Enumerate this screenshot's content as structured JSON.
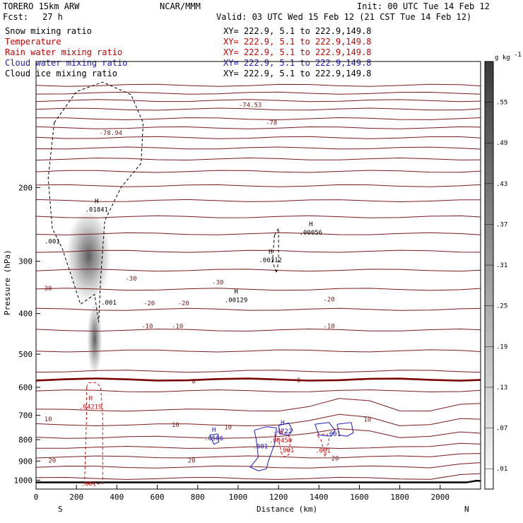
{
  "header": {
    "model": "TORERO   15km ARW",
    "org": "NCAR/MMM",
    "init": "Init: 00 UTC Tue 14 Feb 12",
    "fcst_label": "Fcst:",
    "fcst_value": "27 h",
    "valid": "Valid: 03 UTC Wed 15 Feb 12 (21 CST Tue 14 Feb 12)"
  },
  "legend": [
    {
      "name": "Snow mixing ratio",
      "xy": "XY= 222.9,   5.1 to 222.9,149.8",
      "color": "#000000"
    },
    {
      "name": "Temperature",
      "xy": "XY= 222.9,   5.1 to 222.9,149.8",
      "color": "#cc0000"
    },
    {
      "name": "Rain water mixing ratio",
      "xy": "XY= 222.9,   5.1 to 222.9,149.8",
      "color": "#cc0000"
    },
    {
      "name": "Cloud water mixing ratio",
      "xy": "XY= 222.9,   5.1 to 222.9,149.8",
      "color": "#1a1acc"
    },
    {
      "name": "Cloud ice mixing ratio",
      "xy": "XY= 222.9,   5.1 to 222.9,149.8",
      "color": "#000000"
    }
  ],
  "colors": {
    "temperature": "#7a1a1a",
    "zero_isotherm": "#7a0000",
    "rain": "#dd1111",
    "cloud_water": "#1a1acc",
    "snow": "#000000",
    "terrain": "#000000"
  },
  "chart_data": {
    "type": "cross-section",
    "xlabel": "Distance (km)",
    "ylabel": "Pressure (hPa)",
    "xlim": [
      0,
      2200
    ],
    "ylim": [
      1050,
      100
    ],
    "x_ticks": [
      0,
      200,
      400,
      600,
      800,
      1000,
      1200,
      1400,
      1600,
      1800,
      2000
    ],
    "y_ticks": [
      200,
      300,
      400,
      500,
      600,
      700,
      800,
      900,
      1000
    ],
    "endpoints": {
      "left": "S",
      "right": "N"
    },
    "colorbar": {
      "unit": "g kg",
      "unit_exp": "-1",
      "ticks": [
        ".01",
        ".07",
        ".13",
        ".19",
        ".25",
        ".31",
        ".37",
        ".43",
        ".49",
        ".55"
      ]
    },
    "isotherm_labels": [
      {
        "x": 50,
        "p": 348,
        "text": "-30"
      },
      {
        "x": 470,
        "p": 330,
        "text": "-30"
      },
      {
        "x": 900,
        "p": 337,
        "text": "-30"
      },
      {
        "x": 560,
        "p": 378,
        "text": "-20"
      },
      {
        "x": 730,
        "p": 378,
        "text": "-20"
      },
      {
        "x": 1450,
        "p": 370,
        "text": "-20"
      },
      {
        "x": 550,
        "p": 429,
        "text": "-10"
      },
      {
        "x": 700,
        "p": 429,
        "text": "-10"
      },
      {
        "x": 1450,
        "p": 429,
        "text": "-10"
      },
      {
        "x": 780,
        "p": 580,
        "text": "0"
      },
      {
        "x": 1300,
        "p": 577,
        "text": "0"
      },
      {
        "x": 60,
        "p": 714,
        "text": "10"
      },
      {
        "x": 690,
        "p": 737,
        "text": "10"
      },
      {
        "x": 950,
        "p": 747,
        "text": "10"
      },
      {
        "x": 1640,
        "p": 716,
        "text": "10"
      },
      {
        "x": 80,
        "p": 897,
        "text": "20"
      },
      {
        "x": 770,
        "p": 897,
        "text": "20"
      },
      {
        "x": 1480,
        "p": 887,
        "text": "20"
      },
      {
        "x": 370,
        "p": 148,
        "text": "-78.94"
      },
      {
        "x": 1060,
        "p": 127,
        "text": "-74.53"
      },
      {
        "x": 1165,
        "p": 140,
        "text": "-78"
      }
    ],
    "maxima_labels": [
      {
        "x": 300,
        "p": 225,
        "h": "H",
        "v": ".01841",
        "color": "#000000"
      },
      {
        "x": 80,
        "p": 268,
        "h": "",
        "v": ".001",
        "color": "#000000"
      },
      {
        "x": 360,
        "p": 375,
        "h": "",
        "v": ".001",
        "color": "#000000"
      },
      {
        "x": 990,
        "p": 370,
        "h": "H",
        "v": ".00129",
        "color": "#000000"
      },
      {
        "x": 1160,
        "p": 297,
        "h": "H",
        "v": ".00312",
        "color": "#000000"
      },
      {
        "x": 1360,
        "p": 255,
        "h": "H",
        "v": ".00056",
        "color": "#000000"
      },
      {
        "x": 270,
        "p": 665,
        "h": "H",
        "v": ".04219",
        "color": "#dd1111"
      },
      {
        "x": 880,
        "p": 790,
        "h": "H",
        "v": ".0586",
        "color": "#1a1acc"
      },
      {
        "x": 1220,
        "p": 760,
        "h": "H",
        "v": ".4722",
        "color": "#1a1acc"
      },
      {
        "x": 1210,
        "p": 800,
        "h": "H",
        "v": ".00450",
        "color": "#dd1111"
      },
      {
        "x": 1110,
        "p": 826,
        "h": "",
        "v": ".001",
        "color": "#1a1acc"
      },
      {
        "x": 1240,
        "p": 845,
        "h": "",
        "v": ".001",
        "color": "#dd1111"
      },
      {
        "x": 1420,
        "p": 847,
        "h": "",
        "v": ".001",
        "color": "#dd1111"
      },
      {
        "x": 1470,
        "p": 772,
        "h": "",
        "v": ".001",
        "color": "#1a1acc"
      },
      {
        "x": 260,
        "p": 1015,
        "h": "",
        "v": ".001",
        "color": "#dd1111"
      }
    ]
  }
}
